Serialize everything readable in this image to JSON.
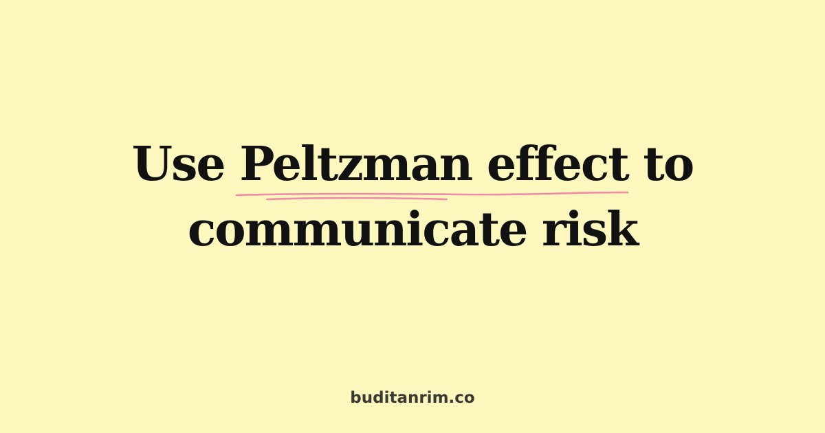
{
  "title": {
    "line1_before": "Use ",
    "highlight": "Peltzman effect",
    "line1_after": " to",
    "line2": "communicate risk"
  },
  "footer": {
    "domain": "buditanrim.co"
  },
  "colors": {
    "background": "#FCF8BD",
    "text": "#111111",
    "underline": "#F08AA6",
    "footer_text": "#3A3934"
  }
}
